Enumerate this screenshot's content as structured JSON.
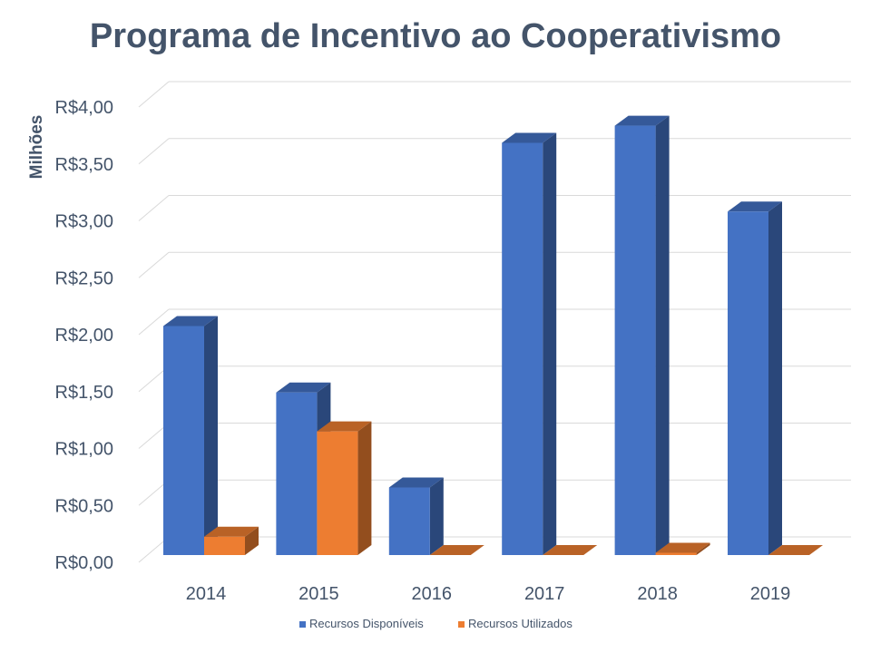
{
  "chart_data": {
    "type": "bar",
    "title": "Programa de Incentivo ao Cooperativismo",
    "ylabel": "Milhões",
    "xlabel": "",
    "categories": [
      "2014",
      "2015",
      "2016",
      "2017",
      "2018",
      "2019"
    ],
    "series": [
      {
        "name": "Recursos Disponíveis",
        "color": "#4472C4",
        "values": [
          2.0,
          1.42,
          0.59,
          3.6,
          3.75,
          3.0
        ]
      },
      {
        "name": "Recursos Utilizados",
        "color": "#ED7D31",
        "values": [
          0.16,
          1.08,
          0.0,
          0.0,
          0.02,
          0.0
        ]
      }
    ],
    "ylim": [
      0,
      4.0
    ],
    "yticks": [
      {
        "value": 0.0,
        "label": "R$0,00"
      },
      {
        "value": 0.5,
        "label": "R$0,50"
      },
      {
        "value": 1.0,
        "label": "R$1,00"
      },
      {
        "value": 1.5,
        "label": "R$1,50"
      },
      {
        "value": 2.0,
        "label": "R$2,00"
      },
      {
        "value": 2.5,
        "label": "R$2,50"
      },
      {
        "value": 3.0,
        "label": "R$3,00"
      },
      {
        "value": 3.5,
        "label": "R$3,50"
      },
      {
        "value": 4.0,
        "label": "R$4,00"
      }
    ],
    "grid": true,
    "legend_position": "bottom",
    "style": "3d-clustered-column"
  }
}
